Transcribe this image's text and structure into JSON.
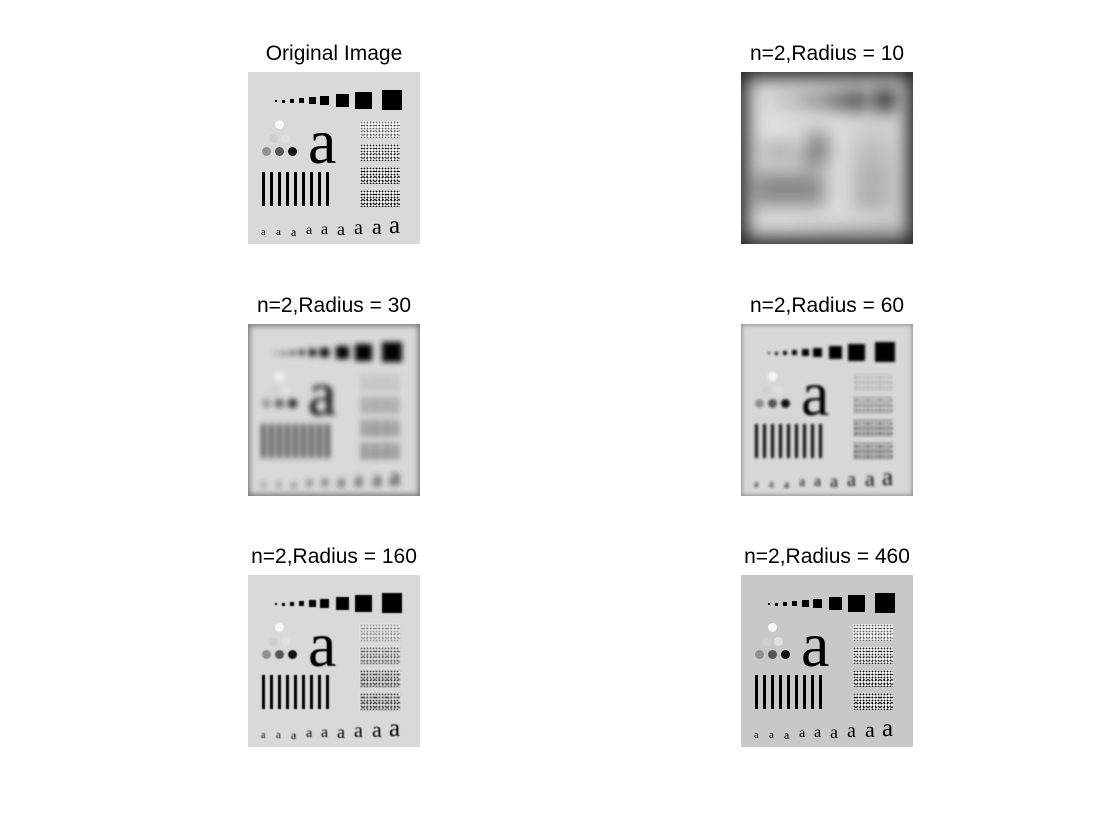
{
  "panels": [
    {
      "title": "Original Image",
      "blur": 0,
      "bg": "#d9d9d9",
      "vignette": "none"
    },
    {
      "title": "n=2,Radius = 10",
      "blur": 9,
      "bg": "#dcdcdc",
      "vignette": "inset 0 0 18px 6px rgba(0,0,0,0.85)"
    },
    {
      "title": "n=2,Radius = 30",
      "blur": 3,
      "bg": "#d9d9d9",
      "vignette": "inset 0 0 6px 2px rgba(0,0,0,0.45)"
    },
    {
      "title": "n=2,Radius = 60",
      "blur": 1.2,
      "bg": "#d7d7d7",
      "vignette": "inset 0 0 4px 1px rgba(0,0,0,0.35)"
    },
    {
      "title": "n=2,Radius = 160",
      "blur": 0.5,
      "bg": "#d9d9d9",
      "vignette": "none"
    },
    {
      "title": "n=2,Radius = 460",
      "blur": 0.2,
      "bg": "#c8c8c8",
      "vignette": "none"
    }
  ],
  "small_letter": "a",
  "big_letter": "a"
}
